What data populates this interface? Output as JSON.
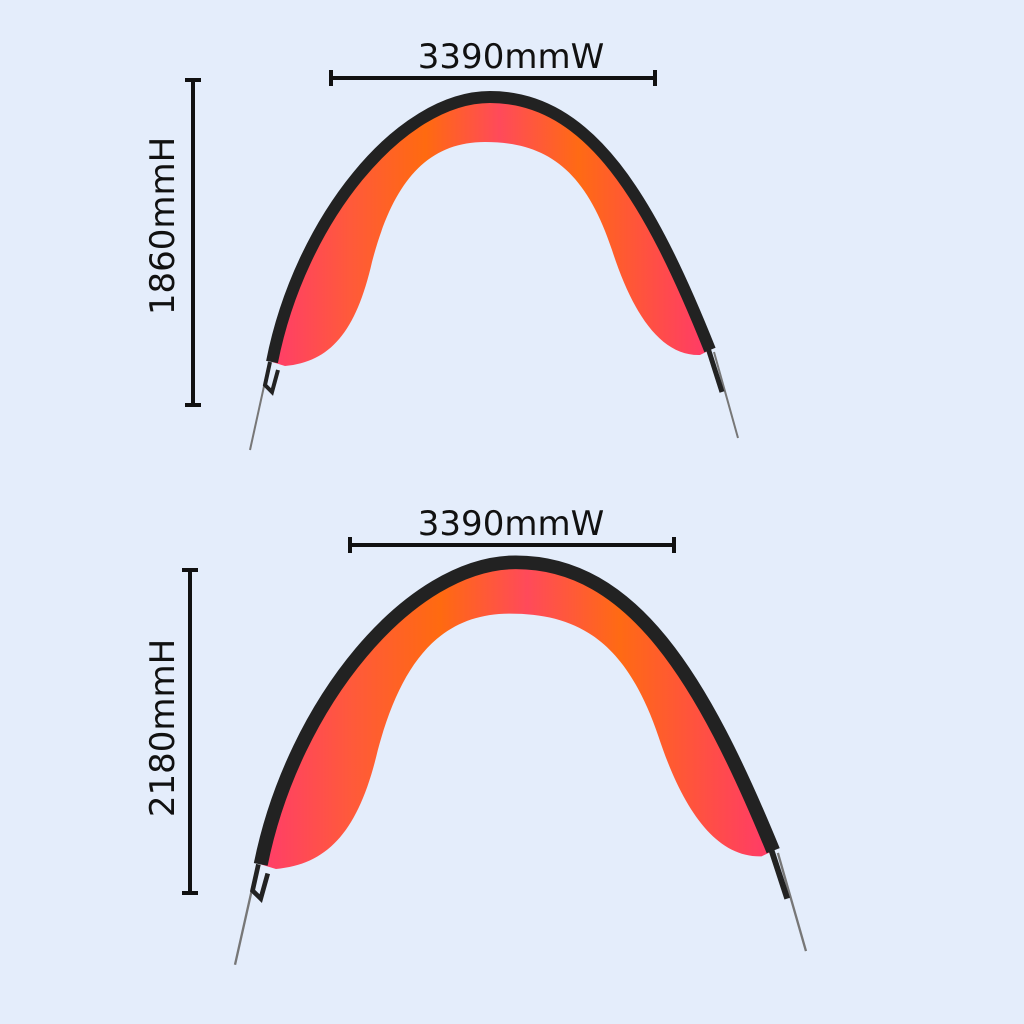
{
  "items": [
    {
      "width_label": "3390mmW",
      "height_label": "1860mmH"
    },
    {
      "width_label": "3390mmW",
      "height_label": "2180mmH"
    }
  ]
}
